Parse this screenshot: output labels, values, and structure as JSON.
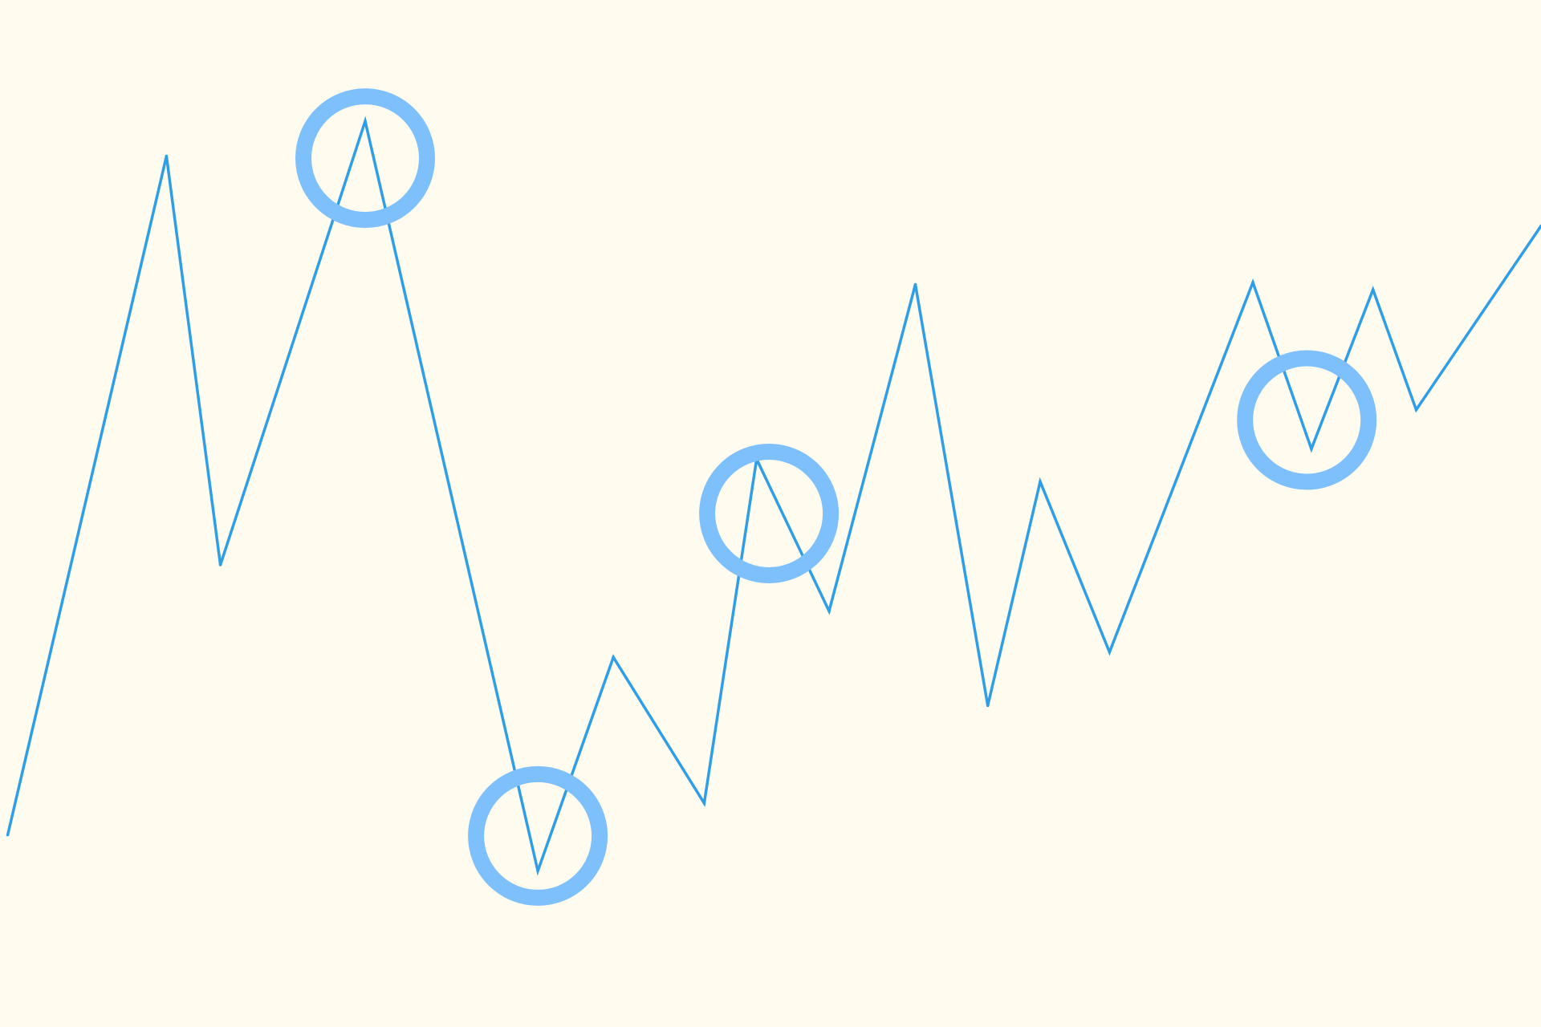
{
  "chart_data": {
    "type": "line",
    "title": "",
    "xlabel": "",
    "ylabel": "",
    "grid": false,
    "legend": "none",
    "xlim": [
      0,
      100
    ],
    "ylim": [
      0,
      100
    ],
    "series": [
      {
        "color": "#2e9ee8",
        "points": [
          [
            0.5,
            18.7
          ],
          [
            10.8,
            84.8
          ],
          [
            14.3,
            45.0
          ],
          [
            23.7,
            88.2
          ],
          [
            34.9,
            15.2
          ],
          [
            39.8,
            36.0
          ],
          [
            45.7,
            21.8
          ],
          [
            49.1,
            55.3
          ],
          [
            53.8,
            40.5
          ],
          [
            59.4,
            72.3
          ],
          [
            64.1,
            31.3
          ],
          [
            67.5,
            53.1
          ],
          [
            72.0,
            36.5
          ],
          [
            81.3,
            72.5
          ],
          [
            85.1,
            56.3
          ],
          [
            89.1,
            71.8
          ],
          [
            91.9,
            60.1
          ],
          [
            100.0,
            78.0
          ]
        ]
      }
    ],
    "markers": {
      "color": "#7dc0fc",
      "style": "ring",
      "points": [
        [
          23.7,
          84.6
        ],
        [
          34.9,
          18.6
        ],
        [
          49.9,
          50.0
        ],
        [
          84.8,
          59.1
        ]
      ]
    }
  }
}
